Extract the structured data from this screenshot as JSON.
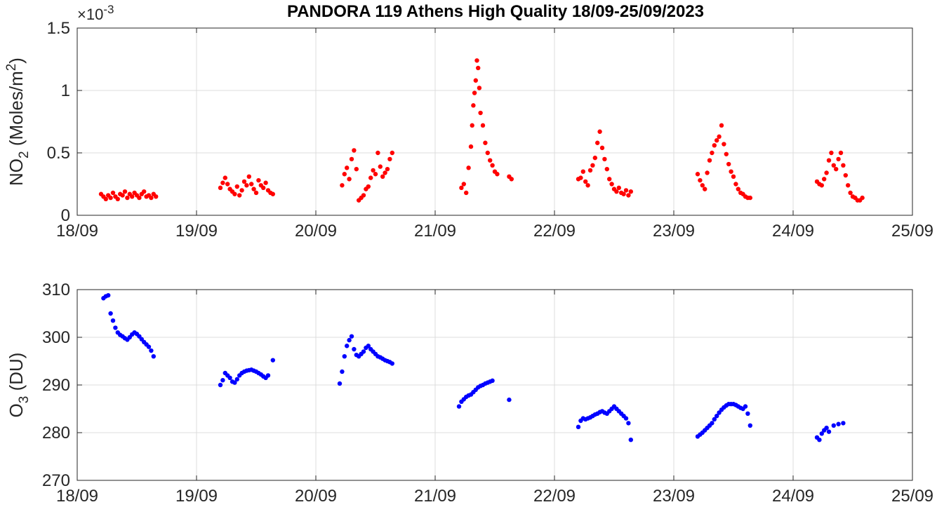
{
  "chart_data": [
    {
      "type": "scatter",
      "title": "PANDORA 119 Athens High Quality 18/09-25/09/2023",
      "ylabel": "NO2 (Moles/m2)",
      "ylabel_parts": {
        "base": "NO",
        "sub": "2",
        "mid": " (Moles/m",
        "sup": "2",
        "end": ")"
      },
      "y_exponent": {
        "prefix": "×10",
        "power": "-3"
      },
      "xlim": [
        0,
        7
      ],
      "ylim": [
        0,
        1.5
      ],
      "x_unit": "days since 18/09/2023 00:00",
      "xticks": [
        0,
        1,
        2,
        3,
        4,
        5,
        6,
        7
      ],
      "xtick_labels": [
        "18/09",
        "19/09",
        "20/09",
        "21/09",
        "22/09",
        "23/09",
        "24/09",
        "25/09"
      ],
      "yticks": [
        0,
        0.5,
        1,
        1.5
      ],
      "ytick_labels": [
        "0",
        "0.5",
        "1",
        "1.5"
      ],
      "grid": true,
      "color": "#ff0000",
      "series": [
        {
          "name": "NO2",
          "x": [
            0.2,
            0.22,
            0.24,
            0.26,
            0.28,
            0.3,
            0.32,
            0.34,
            0.36,
            0.38,
            0.4,
            0.42,
            0.44,
            0.46,
            0.48,
            0.5,
            0.52,
            0.54,
            0.56,
            0.58,
            0.6,
            0.62,
            0.64,
            0.66,
            1.2,
            1.22,
            1.24,
            1.26,
            1.28,
            1.3,
            1.32,
            1.34,
            1.36,
            1.38,
            1.4,
            1.42,
            1.44,
            1.46,
            1.48,
            1.5,
            1.52,
            1.54,
            1.56,
            1.58,
            1.6,
            1.62,
            1.64,
            2.22,
            2.24,
            2.26,
            2.28,
            2.3,
            2.32,
            2.34,
            2.36,
            2.38,
            2.4,
            2.42,
            2.44,
            2.46,
            2.48,
            2.5,
            2.52,
            2.54,
            2.56,
            2.58,
            2.6,
            2.62,
            2.64,
            3.22,
            3.24,
            3.26,
            3.28,
            3.3,
            3.31,
            3.32,
            3.33,
            3.34,
            3.35,
            3.36,
            3.37,
            3.38,
            3.4,
            3.42,
            3.44,
            3.46,
            3.48,
            3.5,
            3.52,
            3.62,
            3.64,
            4.2,
            4.22,
            4.24,
            4.26,
            4.28,
            4.3,
            4.32,
            4.34,
            4.36,
            4.38,
            4.4,
            4.42,
            4.44,
            4.46,
            4.48,
            4.5,
            4.52,
            4.54,
            4.56,
            4.58,
            4.6,
            4.62,
            4.64,
            5.2,
            5.22,
            5.24,
            5.26,
            5.28,
            5.3,
            5.32,
            5.34,
            5.36,
            5.38,
            5.4,
            5.42,
            5.44,
            5.46,
            5.48,
            5.5,
            5.52,
            5.54,
            5.56,
            5.58,
            5.6,
            5.62,
            5.64,
            6.2,
            6.22,
            6.24,
            6.26,
            6.28,
            6.3,
            6.32,
            6.34,
            6.36,
            6.38,
            6.4,
            6.42,
            6.44,
            6.46,
            6.48,
            6.5,
            6.52,
            6.54,
            6.56,
            6.58
          ],
          "y": [
            0.17,
            0.15,
            0.13,
            0.16,
            0.14,
            0.18,
            0.15,
            0.13,
            0.17,
            0.16,
            0.19,
            0.14,
            0.17,
            0.15,
            0.18,
            0.16,
            0.14,
            0.17,
            0.19,
            0.15,
            0.16,
            0.14,
            0.17,
            0.15,
            0.22,
            0.26,
            0.3,
            0.25,
            0.21,
            0.19,
            0.17,
            0.23,
            0.16,
            0.2,
            0.27,
            0.24,
            0.31,
            0.25,
            0.21,
            0.18,
            0.28,
            0.24,
            0.22,
            0.26,
            0.2,
            0.18,
            0.17,
            0.24,
            0.33,
            0.38,
            0.29,
            0.45,
            0.52,
            0.37,
            0.12,
            0.14,
            0.16,
            0.21,
            0.23,
            0.3,
            0.36,
            0.33,
            0.5,
            0.39,
            0.31,
            0.34,
            0.37,
            0.45,
            0.5,
            0.22,
            0.25,
            0.18,
            0.38,
            0.55,
            0.72,
            0.88,
            0.98,
            1.08,
            1.24,
            1.18,
            1.02,
            0.82,
            0.72,
            0.58,
            0.5,
            0.44,
            0.4,
            0.35,
            0.33,
            0.31,
            0.29,
            0.29,
            0.3,
            0.35,
            0.27,
            0.24,
            0.36,
            0.4,
            0.46,
            0.58,
            0.67,
            0.54,
            0.45,
            0.37,
            0.29,
            0.25,
            0.21,
            0.19,
            0.22,
            0.18,
            0.17,
            0.2,
            0.16,
            0.19,
            0.33,
            0.28,
            0.24,
            0.21,
            0.34,
            0.44,
            0.5,
            0.56,
            0.6,
            0.63,
            0.72,
            0.57,
            0.49,
            0.41,
            0.35,
            0.31,
            0.25,
            0.21,
            0.18,
            0.17,
            0.15,
            0.14,
            0.14,
            0.27,
            0.25,
            0.24,
            0.29,
            0.34,
            0.44,
            0.5,
            0.4,
            0.37,
            0.45,
            0.5,
            0.4,
            0.32,
            0.24,
            0.18,
            0.15,
            0.14,
            0.12,
            0.12,
            0.14
          ]
        }
      ]
    },
    {
      "type": "scatter",
      "title": "",
      "ylabel": "O3 (DU)",
      "ylabel_parts": {
        "base": "O",
        "sub": "3",
        "mid": " (DU)",
        "sup": "",
        "end": ""
      },
      "xlim": [
        0,
        7
      ],
      "ylim": [
        270,
        310
      ],
      "x_unit": "days since 18/09/2023 00:00",
      "xticks": [
        0,
        1,
        2,
        3,
        4,
        5,
        6,
        7
      ],
      "xtick_labels": [
        "18/09",
        "19/09",
        "20/09",
        "21/09",
        "22/09",
        "23/09",
        "24/09",
        "25/09"
      ],
      "yticks": [
        270,
        280,
        290,
        300,
        310
      ],
      "ytick_labels": [
        "270",
        "280",
        "290",
        "300",
        "310"
      ],
      "grid": true,
      "color": "#0000ff",
      "series": [
        {
          "name": "O3",
          "x": [
            0.22,
            0.24,
            0.26,
            0.28,
            0.3,
            0.32,
            0.34,
            0.36,
            0.38,
            0.4,
            0.42,
            0.44,
            0.46,
            0.48,
            0.5,
            0.52,
            0.54,
            0.56,
            0.58,
            0.6,
            0.62,
            0.64,
            1.2,
            1.22,
            1.24,
            1.26,
            1.28,
            1.3,
            1.32,
            1.34,
            1.36,
            1.38,
            1.4,
            1.42,
            1.44,
            1.46,
            1.48,
            1.5,
            1.52,
            1.54,
            1.56,
            1.58,
            1.6,
            1.64,
            2.2,
            2.22,
            2.24,
            2.26,
            2.28,
            2.3,
            2.32,
            2.34,
            2.36,
            2.38,
            2.4,
            2.42,
            2.44,
            2.46,
            2.48,
            2.5,
            2.52,
            2.54,
            2.56,
            2.58,
            2.6,
            2.62,
            2.64,
            3.2,
            3.22,
            3.24,
            3.26,
            3.28,
            3.3,
            3.32,
            3.34,
            3.36,
            3.38,
            3.4,
            3.42,
            3.44,
            3.46,
            3.48,
            3.62,
            4.2,
            4.22,
            4.24,
            4.26,
            4.28,
            4.3,
            4.32,
            4.34,
            4.36,
            4.38,
            4.4,
            4.42,
            4.44,
            4.46,
            4.48,
            4.5,
            4.52,
            4.54,
            4.56,
            4.58,
            4.6,
            4.62,
            4.64,
            5.2,
            5.22,
            5.24,
            5.26,
            5.28,
            5.3,
            5.32,
            5.34,
            5.36,
            5.38,
            5.4,
            5.42,
            5.44,
            5.46,
            5.48,
            5.5,
            5.52,
            5.54,
            5.56,
            5.58,
            5.6,
            5.62,
            5.64,
            6.2,
            6.22,
            6.24,
            6.26,
            6.28,
            6.3,
            6.34,
            6.38,
            6.42
          ],
          "y": [
            308.2,
            308.6,
            308.8,
            305.0,
            303.5,
            302.0,
            301.0,
            300.5,
            300.2,
            299.8,
            299.5,
            300.0,
            300.6,
            301.0,
            300.7,
            300.2,
            299.6,
            299.0,
            298.5,
            298.0,
            297.2,
            296.0,
            290.0,
            291.0,
            292.5,
            292.0,
            291.5,
            290.7,
            290.5,
            291.2,
            292.0,
            292.5,
            292.8,
            293.0,
            293.1,
            293.2,
            293.0,
            292.8,
            292.5,
            292.2,
            291.8,
            291.5,
            292.0,
            295.2,
            290.3,
            292.8,
            296.0,
            298.2,
            299.4,
            300.2,
            297.5,
            296.3,
            296.0,
            296.5,
            297.0,
            297.8,
            298.2,
            297.5,
            297.0,
            296.5,
            296.0,
            295.8,
            295.5,
            295.2,
            295.0,
            294.8,
            294.5,
            285.5,
            286.5,
            287.0,
            287.5,
            287.8,
            288.0,
            288.5,
            289.0,
            289.5,
            289.8,
            290.0,
            290.3,
            290.5,
            290.7,
            290.9,
            286.9,
            281.2,
            282.5,
            283.0,
            282.8,
            283.0,
            283.2,
            283.5,
            283.8,
            284.0,
            284.3,
            284.5,
            284.2,
            284.0,
            284.5,
            285.0,
            285.5,
            285.0,
            284.5,
            284.0,
            283.5,
            283.0,
            282.0,
            278.5,
            279.2,
            279.6,
            280.0,
            280.5,
            281.0,
            281.5,
            282.0,
            282.8,
            283.5,
            284.2,
            284.8,
            285.3,
            285.7,
            286.0,
            286.0,
            286.0,
            285.8,
            285.5,
            285.2,
            285.0,
            285.5,
            284.0,
            281.5,
            279.0,
            278.5,
            279.8,
            280.5,
            281.0,
            280.2,
            281.5,
            281.8,
            282.0
          ]
        }
      ]
    }
  ]
}
